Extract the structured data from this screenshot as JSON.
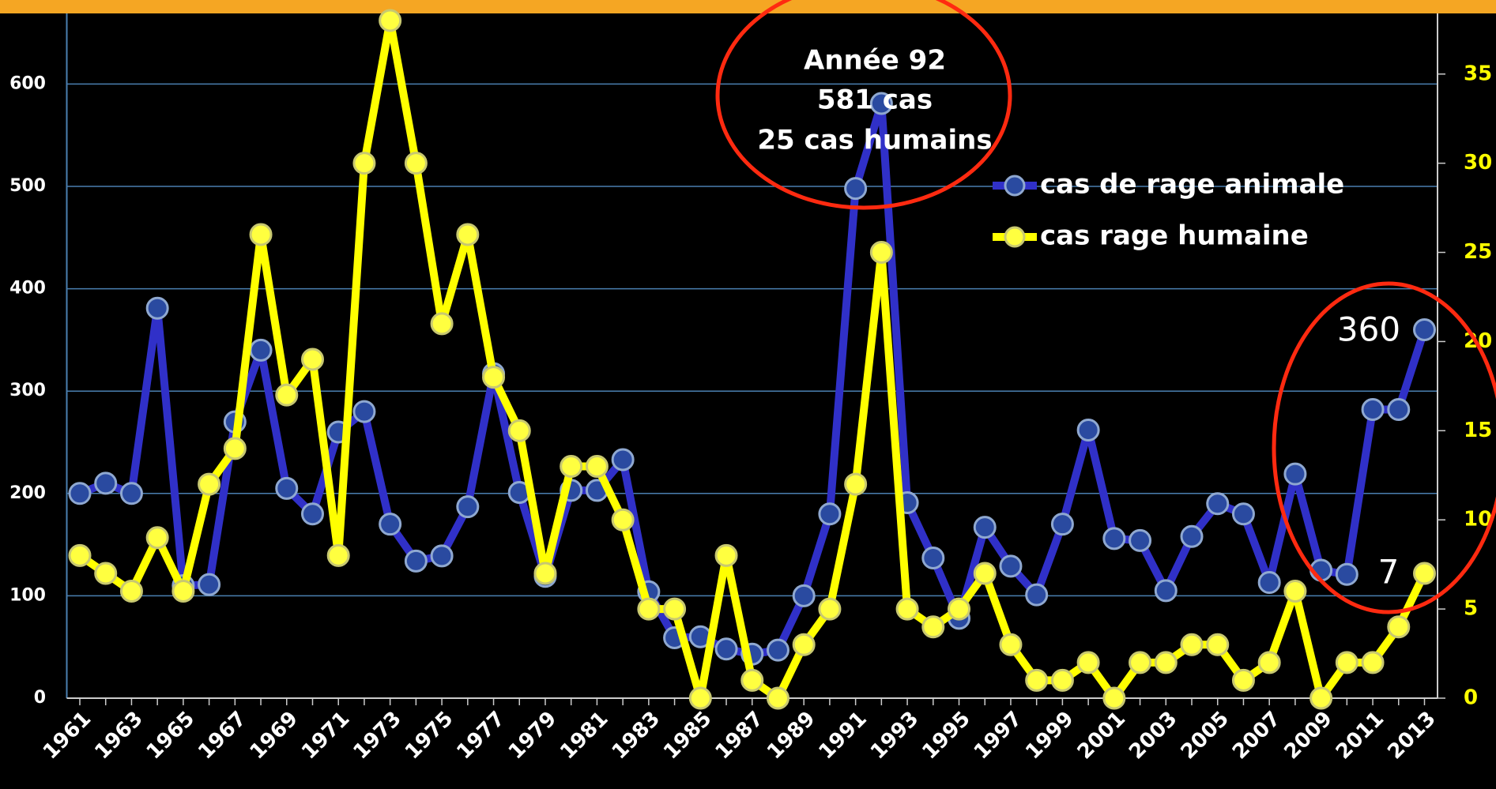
{
  "chart_data": {
    "type": "line",
    "categories": [
      "1961",
      null,
      "1963",
      null,
      "1965",
      null,
      "1967",
      null,
      "1969",
      null,
      "1971",
      null,
      "1973",
      null,
      "1975",
      null,
      "1977",
      null,
      "1979",
      null,
      "1981",
      null,
      "1983",
      null,
      "1985",
      null,
      "1987",
      null,
      "1989",
      null,
      "1991",
      null,
      "1993",
      null,
      "1995",
      null,
      "1997",
      null,
      "1999",
      null,
      "2001",
      null,
      "2003",
      null,
      "2005",
      null,
      "2007",
      null,
      "2009",
      null,
      "2011",
      null,
      "2013"
    ],
    "series": [
      {
        "name": "cas de rage animale",
        "color": "#3030c8",
        "axis": "y",
        "values": [
          200,
          210,
          200,
          381,
          110,
          111,
          270,
          340,
          205,
          180,
          260,
          280,
          170,
          134,
          139,
          187,
          317,
          201,
          119,
          203,
          203,
          233,
          104,
          59,
          60,
          48,
          43,
          47,
          100,
          180,
          498,
          581,
          191,
          137,
          78,
          167,
          129,
          101,
          170,
          262,
          156,
          154,
          105,
          158,
          190,
          180,
          113,
          219,
          125,
          121,
          282,
          282,
          360
        ]
      },
      {
        "name": "cas rage humaine",
        "color": "#ffff00",
        "axis": "y2",
        "values": [
          8,
          7,
          6,
          9,
          6,
          12,
          14,
          26,
          17,
          19,
          8,
          30,
          38,
          30,
          21,
          26,
          18,
          15,
          7,
          13,
          13,
          10,
          5,
          5,
          0,
          8,
          1,
          0,
          3,
          5,
          12,
          25,
          5,
          4,
          5,
          7,
          3,
          1,
          1,
          2,
          0,
          2,
          2,
          3,
          3,
          1,
          2,
          6,
          0,
          2,
          2,
          4,
          7
        ]
      }
    ],
    "ylim": [
      0,
      669
    ],
    "yticks": [
      0,
      100,
      200,
      300,
      400,
      500,
      600
    ],
    "y2lim": [
      0,
      38.4
    ],
    "y2ticks": [
      0,
      5,
      10,
      15,
      20,
      25,
      30,
      35
    ],
    "grid": true,
    "annotations": [
      "Année 92",
      "581 cas",
      "25 cas humains",
      "360",
      "7"
    ]
  }
}
